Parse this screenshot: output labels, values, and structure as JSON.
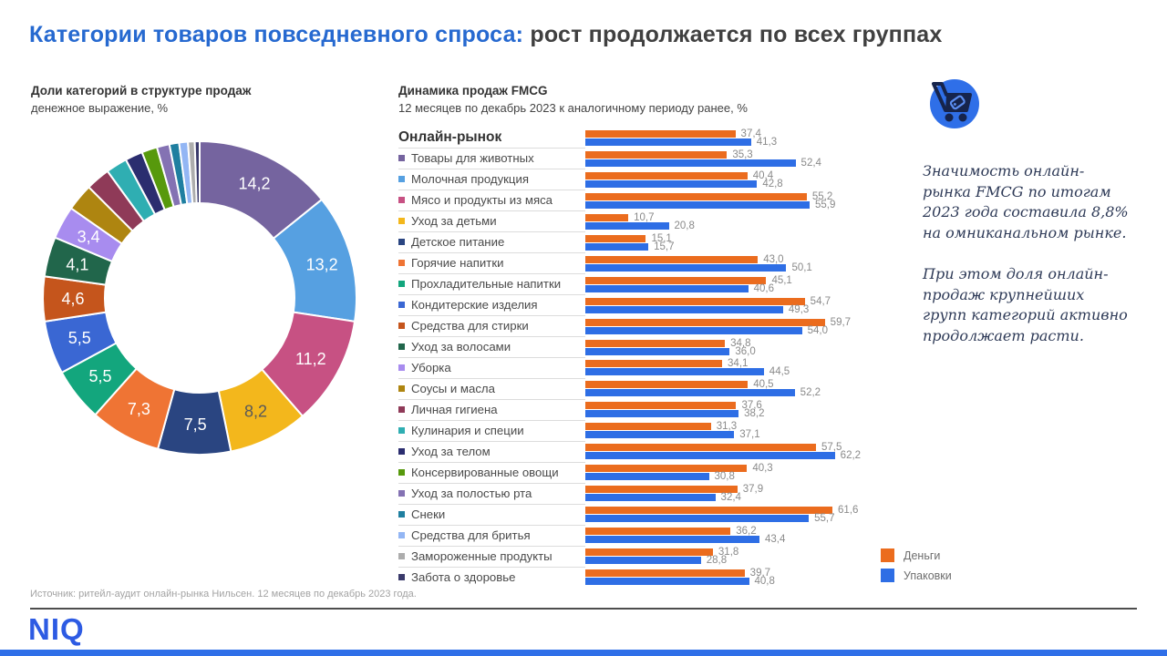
{
  "title": {
    "highlight": "Категории товаров повседневного спроса:",
    "rest": " рост продолжается по всех группах"
  },
  "donut_section": {
    "title": "Доли категорий в структуре продаж",
    "subtitle": "денежное выражение, %"
  },
  "bars_section": {
    "title": "Динамика продаж FMCG",
    "subtitle": "12 месяцев по декабрь 2023 к аналогичному периоду ранее, %"
  },
  "legend": [
    {
      "label": "Деньги",
      "color": "#EB6C1E"
    },
    {
      "label": "Упаковки",
      "color": "#2E6EE5"
    }
  ],
  "sidebar": {
    "icon": "shopping-cart-icon",
    "paragraphs": [
      "Значимость онлайн-рынка FMCG по итогам 2023 года составила 8,8% на омниканальном рынке.",
      "При этом доля онлайн-продаж крупнейших групп категорий активно продолжает расти."
    ]
  },
  "footer": {
    "source": "Источник: ритейл-аудит онлайн-рынка Нильсен. 12 месяцев по декабрь 2023 года.",
    "logo": "NIQ"
  },
  "colors": {
    "money": "#EB6C1E",
    "packs": "#2E6EE5",
    "accent_blue": "#2F6FE8"
  },
  "chart_data": [
    {
      "type": "pie",
      "title": "Доли категорий в структуре продаж",
      "unit": "денежное выражение, %",
      "note": "donut; labels shown only for slices >= 3,4; smaller slice values estimated from arc length",
      "slices": [
        {
          "name": "Товары для животных",
          "value": 14.2,
          "color": "#75649F",
          "show_label": true
        },
        {
          "name": "Молочная продукция",
          "value": 13.2,
          "color": "#56A0E1",
          "show_label": true
        },
        {
          "name": "Мясо и продукты из мяса",
          "value": 11.2,
          "color": "#C75183",
          "show_label": true
        },
        {
          "name": "Уход за детьми",
          "value": 8.2,
          "color": "#F3B71C",
          "show_label": true,
          "label_color": "#595959"
        },
        {
          "name": "Детское питание",
          "value": 7.5,
          "color": "#2A4581",
          "show_label": true
        },
        {
          "name": "Горячие напитки",
          "value": 7.3,
          "color": "#EF7434",
          "show_label": true
        },
        {
          "name": "Прохладительные напитки",
          "value": 5.5,
          "color": "#13A67D",
          "show_label": true
        },
        {
          "name": "Кондитерские изделия",
          "value": 5.5,
          "color": "#3A67D3",
          "show_label": true
        },
        {
          "name": "Средства для стирки",
          "value": 4.6,
          "color": "#C5551C",
          "show_label": true
        },
        {
          "name": "Уход за волосами",
          "value": 4.1,
          "color": "#21664B",
          "show_label": true
        },
        {
          "name": "Уборка",
          "value": 3.4,
          "color": "#A88CEF",
          "show_label": true
        },
        {
          "name": "Соусы и масла",
          "value": 2.8,
          "color": "#AE8510",
          "show_label": false
        },
        {
          "name": "Личная гигиена",
          "value": 2.5,
          "color": "#8F3A58",
          "show_label": false
        },
        {
          "name": "Кулинария и специи",
          "value": 2.2,
          "color": "#2FAEB2",
          "show_label": false
        },
        {
          "name": "Уход за телом",
          "value": 1.8,
          "color": "#2B2D6F",
          "show_label": false
        },
        {
          "name": "Консервированные овощи",
          "value": 1.6,
          "color": "#57990C",
          "show_label": false
        },
        {
          "name": "Уход за полостью рта",
          "value": 1.3,
          "color": "#8472B3",
          "show_label": false
        },
        {
          "name": "Снеки",
          "value": 1.0,
          "color": "#1F7FA0",
          "show_label": false
        },
        {
          "name": "Средства для бритья",
          "value": 0.9,
          "color": "#93B6F4",
          "show_label": false
        },
        {
          "name": "Замороженные продукты",
          "value": 0.7,
          "color": "#ADADAD",
          "show_label": false
        },
        {
          "name": "Забота о здоровье",
          "value": 0.5,
          "color": "#3A3A6B",
          "show_label": false
        }
      ]
    },
    {
      "type": "bar",
      "orientation": "horizontal",
      "title": "Динамика продаж FMCG",
      "unit": "%",
      "series_names": [
        "Деньги",
        "Упаковки"
      ],
      "xlim": [
        0,
        65
      ],
      "rows": [
        {
          "name": "Онлайн-рынок",
          "header": true,
          "money": 37.4,
          "packs": 41.3
        },
        {
          "name": "Товары для животных",
          "bullet": "#75649F",
          "money": 35.3,
          "packs": 52.4
        },
        {
          "name": "Молочная продукция",
          "bullet": "#56A0E1",
          "money": 40.4,
          "packs": 42.8
        },
        {
          "name": "Мясо и продукты из мяса",
          "bullet": "#C75183",
          "money": 55.2,
          "packs": 55.9
        },
        {
          "name": "Уход за детьми",
          "bullet": "#F3B71C",
          "money": 10.7,
          "packs": 20.8
        },
        {
          "name": "Детское питание",
          "bullet": "#2A4581",
          "money": 15.1,
          "packs": 15.7
        },
        {
          "name": "Горячие напитки",
          "bullet": "#EF7434",
          "money": 43.0,
          "packs": 50.1
        },
        {
          "name": "Прохладительные напитки",
          "bullet": "#13A67D",
          "money": 45.1,
          "packs": 40.6
        },
        {
          "name": "Кондитерские изделия",
          "bullet": "#3A67D3",
          "money": 54.7,
          "packs": 49.3
        },
        {
          "name": "Средства для стирки",
          "bullet": "#C5551C",
          "money": 59.7,
          "packs": 54.0
        },
        {
          "name": "Уход за волосами",
          "bullet": "#21664B",
          "money": 34.8,
          "packs": 36.0
        },
        {
          "name": "Уборка",
          "bullet": "#A88CEF",
          "money": 34.1,
          "packs": 44.5
        },
        {
          "name": "Соусы и масла",
          "bullet": "#AE8510",
          "money": 40.5,
          "packs": 52.2
        },
        {
          "name": "Личная гигиена",
          "bullet": "#8F3A58",
          "money": 37.6,
          "packs": 38.2
        },
        {
          "name": "Кулинария и специи",
          "bullet": "#2FAEB2",
          "money": 31.3,
          "packs": 37.1
        },
        {
          "name": "Уход за телом",
          "bullet": "#2B2D6F",
          "money": 57.5,
          "packs": 62.2
        },
        {
          "name": "Консервированные овощи",
          "bullet": "#57990C",
          "money": 40.3,
          "packs": 30.8
        },
        {
          "name": "Уход за полостью рта",
          "bullet": "#8472B3",
          "money": 37.9,
          "packs": 32.4
        },
        {
          "name": "Снеки",
          "bullet": "#1F7FA0",
          "money": 61.6,
          "packs": 55.7
        },
        {
          "name": "Средства для бритья",
          "bullet": "#93B6F4",
          "money": 36.2,
          "packs": 43.4
        },
        {
          "name": "Замороженные продукты",
          "bullet": "#ADADAD",
          "money": 31.8,
          "packs": 28.8
        },
        {
          "name": "Забота о здоровье",
          "bullet": "#3A3A6B",
          "money": 39.7,
          "packs": 40.8
        }
      ]
    }
  ]
}
